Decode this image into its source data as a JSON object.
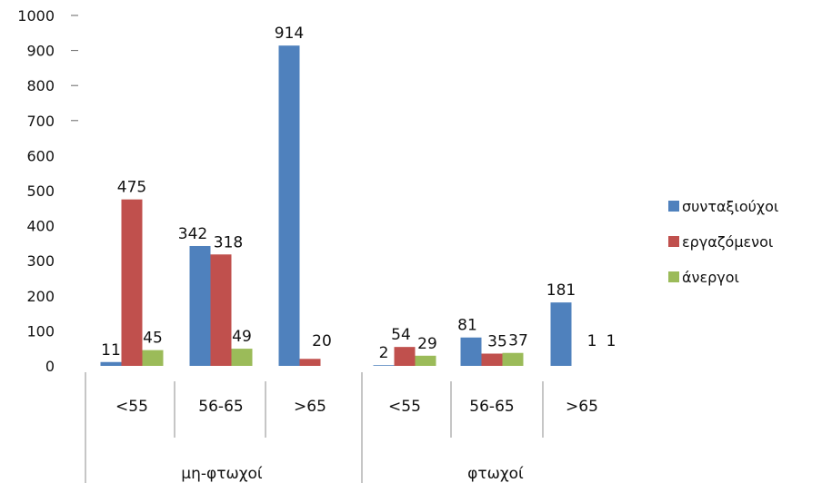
{
  "chart_data": {
    "type": "bar",
    "title": "",
    "xlabel": "",
    "ylabel": "",
    "ylim": [
      0,
      1000
    ],
    "yticks": [
      "0",
      "100",
      "200",
      "300",
      "400",
      "500",
      "600",
      "700",
      "800",
      "900",
      "1000"
    ],
    "grid": false,
    "legend_position": "right",
    "groups": [
      {
        "label": "μη-φτωχοί",
        "categories": [
          "<55",
          "56-65",
          ">65"
        ]
      },
      {
        "label": "φτωχοί",
        "categories": [
          "<55",
          "56-65",
          ">65"
        ]
      }
    ],
    "series": [
      {
        "name": "συνταξιούχοι",
        "color": "#4f81bd",
        "values": [
          11,
          342,
          914,
          2,
          81,
          181
        ],
        "labels": [
          "11",
          "342",
          "914",
          "2",
          "81",
          "181"
        ]
      },
      {
        "name": "εργαζόμενοι",
        "color": "#c0504d",
        "values": [
          475,
          318,
          20,
          54,
          35,
          1
        ],
        "labels": [
          "475",
          "318",
          "20",
          "54",
          "35",
          "1"
        ]
      },
      {
        "name": "άνεργοι",
        "color": "#9bbb59",
        "values": [
          45,
          49,
          0,
          29,
          37,
          1
        ],
        "labels": [
          "45",
          "49",
          "0",
          "29",
          "37",
          "1"
        ]
      }
    ]
  }
}
